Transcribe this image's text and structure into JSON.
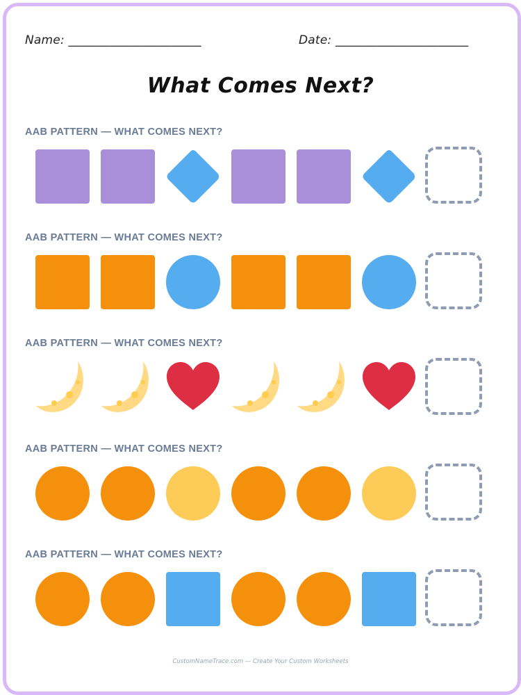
{
  "header": {
    "name_label": "Name: ______________________",
    "date_label": "Date: ______________________"
  },
  "title": "What Comes Next?",
  "rows": [
    {
      "label": "AAB PATTERN — WHAT COMES NEXT?",
      "items": [
        {
          "shape": "square",
          "color": "#a98fd9"
        },
        {
          "shape": "square",
          "color": "#a98fd9"
        },
        {
          "shape": "diamond",
          "color": "#55acee"
        },
        {
          "shape": "square",
          "color": "#a98fd9"
        },
        {
          "shape": "square",
          "color": "#a98fd9"
        },
        {
          "shape": "diamond",
          "color": "#55acee"
        }
      ]
    },
    {
      "label": "AAB PATTERN — WHAT COMES NEXT?",
      "items": [
        {
          "shape": "square",
          "color": "#f4900c"
        },
        {
          "shape": "square",
          "color": "#f4900c"
        },
        {
          "shape": "circle",
          "color": "#55acee"
        },
        {
          "shape": "square",
          "color": "#f4900c"
        },
        {
          "shape": "square",
          "color": "#f4900c"
        },
        {
          "shape": "circle",
          "color": "#55acee"
        }
      ]
    },
    {
      "label": "AAB PATTERN — WHAT COMES NEXT?",
      "items": [
        {
          "shape": "moon",
          "color": "#ffd983"
        },
        {
          "shape": "moon",
          "color": "#ffd983"
        },
        {
          "shape": "heart",
          "color": "#dd2e44"
        },
        {
          "shape": "moon",
          "color": "#ffd983"
        },
        {
          "shape": "moon",
          "color": "#ffd983"
        },
        {
          "shape": "heart",
          "color": "#dd2e44"
        }
      ]
    },
    {
      "label": "AAB PATTERN — WHAT COMES NEXT?",
      "items": [
        {
          "shape": "circle",
          "color": "#f4900c"
        },
        {
          "shape": "circle",
          "color": "#f4900c"
        },
        {
          "shape": "circle",
          "color": "#fdcb58"
        },
        {
          "shape": "circle",
          "color": "#f4900c"
        },
        {
          "shape": "circle",
          "color": "#f4900c"
        },
        {
          "shape": "circle",
          "color": "#fdcb58"
        }
      ]
    },
    {
      "label": "AAB PATTERN — WHAT COMES NEXT?",
      "items": [
        {
          "shape": "circle",
          "color": "#f4900c"
        },
        {
          "shape": "circle",
          "color": "#f4900c"
        },
        {
          "shape": "square",
          "color": "#55acee"
        },
        {
          "shape": "circle",
          "color": "#f4900c"
        },
        {
          "shape": "circle",
          "color": "#f4900c"
        },
        {
          "shape": "square",
          "color": "#55acee"
        }
      ]
    }
  ],
  "footer": "CustomNameTrace.com — Create Your Custom Worksheets"
}
